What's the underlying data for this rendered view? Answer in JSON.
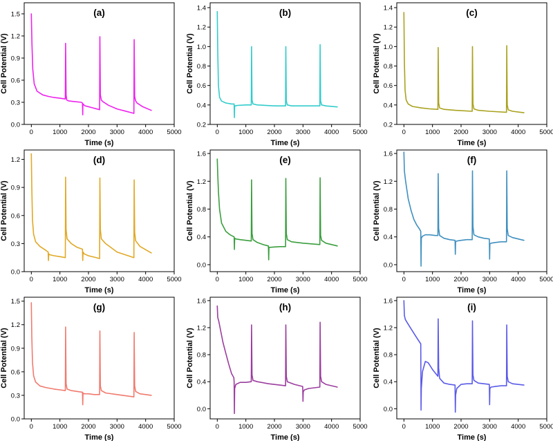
{
  "chart_data": [
    {
      "id": "a",
      "type": "line",
      "title": "(a)",
      "xlabel": "Time (s)",
      "ylabel": "Cell Potential (V)",
      "xlim": [
        -250,
        5000
      ],
      "ylim": [
        0,
        1.65
      ],
      "xticks": [
        0,
        1000,
        2000,
        3000,
        4000,
        5000
      ],
      "xtick_labels": [
        "0",
        "1000",
        "2000",
        "3000",
        "4000",
        "5000"
      ],
      "yticks": [
        0,
        0.3,
        0.6,
        0.9,
        1.2,
        1.5
      ],
      "ytick_labels": [
        "0.0",
        "0.3",
        "0.6",
        "0.9",
        "1.2",
        "1.5"
      ],
      "color": "#ee22ee",
      "x": [
        0,
        20,
        50,
        100,
        200,
        400,
        600,
        800,
        1000,
        1190,
        1200,
        1215,
        1240,
        1300,
        1500,
        1750,
        1790,
        1800,
        1805,
        1830,
        1850,
        1900,
        2100,
        2390,
        2400,
        2415,
        2450,
        2500,
        2700,
        3000,
        3300,
        3590,
        3600,
        3615,
        3650,
        3700,
        3900,
        4200
      ],
      "y": [
        1.5,
        1.1,
        0.75,
        0.55,
        0.45,
        0.4,
        0.38,
        0.365,
        0.355,
        0.345,
        1.1,
        0.4,
        0.33,
        0.32,
        0.31,
        0.3,
        0.29,
        0.13,
        0.28,
        0.27,
        0.26,
        0.25,
        0.23,
        0.2,
        1.19,
        0.4,
        0.33,
        0.31,
        0.26,
        0.21,
        0.18,
        0.15,
        1.15,
        0.38,
        0.32,
        0.29,
        0.24,
        0.19
      ]
    },
    {
      "id": "b",
      "type": "line",
      "title": "(b)",
      "xlabel": "Time (s)",
      "ylabel": "Cell Potential (V)",
      "xlim": [
        -250,
        5000
      ],
      "ylim": [
        0.2,
        1.45
      ],
      "xticks": [
        0,
        1000,
        2000,
        3000,
        4000,
        5000
      ],
      "xtick_labels": [
        "0",
        "1000",
        "2000",
        "3000",
        "4000",
        "5000"
      ],
      "yticks": [
        0.2,
        0.4,
        0.6,
        0.8,
        1.0,
        1.2,
        1.4
      ],
      "ytick_labels": [
        "0.2",
        "0.4",
        "0.6",
        "0.8",
        "1.0",
        "1.2",
        "1.4"
      ],
      "color": "#33cccc",
      "x": [
        0,
        15,
        40,
        80,
        150,
        300,
        500,
        590,
        600,
        610,
        640,
        700,
        1000,
        1190,
        1200,
        1215,
        1250,
        1400,
        2000,
        2390,
        2400,
        2415,
        2450,
        2600,
        3000,
        3590,
        3600,
        3615,
        3650,
        3800,
        4200
      ],
      "y": [
        1.36,
        0.95,
        0.6,
        0.48,
        0.44,
        0.42,
        0.41,
        0.41,
        0.27,
        0.39,
        0.39,
        0.395,
        0.4,
        0.4,
        1.0,
        0.45,
        0.41,
        0.4,
        0.39,
        0.39,
        1.0,
        0.44,
        0.4,
        0.39,
        0.39,
        0.39,
        1.02,
        0.44,
        0.4,
        0.39,
        0.38
      ]
    },
    {
      "id": "c",
      "type": "line",
      "title": "(c)",
      "xlabel": "Time (s)",
      "ylabel": "Cell Potential (V)",
      "xlim": [
        -250,
        5000
      ],
      "ylim": [
        0.2,
        1.45
      ],
      "xticks": [
        0,
        1000,
        2000,
        3000,
        4000,
        5000
      ],
      "xtick_labels": [
        "0",
        "1000",
        "2000",
        "3000",
        "4000",
        "5000"
      ],
      "yticks": [
        0.2,
        0.4,
        0.6,
        0.8,
        1.0,
        1.2,
        1.4
      ],
      "ytick_labels": [
        "0.2",
        "0.4",
        "0.6",
        "0.8",
        "1.0",
        "1.2",
        "1.4"
      ],
      "color": "#a9a21e",
      "x": [
        0,
        15,
        40,
        80,
        150,
        300,
        600,
        900,
        1190,
        1200,
        1215,
        1250,
        1400,
        1800,
        2390,
        2400,
        2415,
        2450,
        2600,
        3000,
        3590,
        3600,
        3615,
        3650,
        3800,
        4200
      ],
      "y": [
        1.35,
        0.85,
        0.55,
        0.45,
        0.41,
        0.385,
        0.37,
        0.36,
        0.355,
        0.99,
        0.42,
        0.37,
        0.355,
        0.345,
        0.335,
        1.0,
        0.41,
        0.36,
        0.345,
        0.335,
        0.325,
        1.01,
        0.4,
        0.35,
        0.335,
        0.32
      ]
    },
    {
      "id": "d",
      "type": "line",
      "title": "(d)",
      "xlabel": "Time (s)",
      "ylabel": "Cell Potential (V)",
      "xlim": [
        -250,
        5000
      ],
      "ylim": [
        0,
        1.3
      ],
      "xticks": [
        0,
        1000,
        2000,
        3000,
        4000,
        5000
      ],
      "xtick_labels": [
        "0",
        "1000",
        "2000",
        "3000",
        "4000",
        "5000"
      ],
      "yticks": [
        0,
        0.3,
        0.6,
        0.9,
        1.2
      ],
      "ytick_labels": [
        "0.0",
        "0.3",
        "0.6",
        "0.9",
        "1.2"
      ],
      "color": "#e0a826",
      "x": [
        0,
        15,
        40,
        80,
        150,
        300,
        500,
        590,
        600,
        610,
        650,
        800,
        1000,
        1190,
        1200,
        1215,
        1250,
        1400,
        1600,
        1790,
        1800,
        1810,
        1850,
        2000,
        2200,
        2390,
        2400,
        2415,
        2450,
        2600,
        3000,
        3590,
        3600,
        3615,
        3650,
        3800,
        4200
      ],
      "y": [
        1.26,
        0.9,
        0.55,
        0.4,
        0.32,
        0.27,
        0.23,
        0.21,
        0.12,
        0.19,
        0.18,
        0.17,
        0.16,
        0.15,
        1.01,
        0.45,
        0.35,
        0.3,
        0.26,
        0.24,
        0.12,
        0.21,
        0.19,
        0.17,
        0.155,
        0.14,
        1.0,
        0.45,
        0.35,
        0.3,
        0.21,
        0.15,
        0.98,
        0.42,
        0.33,
        0.27,
        0.2
      ]
    },
    {
      "id": "e",
      "type": "line",
      "title": "(e)",
      "xlabel": "Time (s)",
      "ylabel": "Cell Potential (V)",
      "xlim": [
        -250,
        5000
      ],
      "ylim": [
        -0.1,
        1.65
      ],
      "xticks": [
        0,
        1000,
        2000,
        3000,
        4000,
        5000
      ],
      "xtick_labels": [
        "0",
        "1000",
        "2000",
        "3000",
        "4000",
        "5000"
      ],
      "yticks": [
        0,
        0.4,
        0.8,
        1.2,
        1.6
      ],
      "ytick_labels": [
        "0.0",
        "0.4",
        "0.8",
        "1.2",
        "1.6"
      ],
      "color": "#3a9e3e",
      "x": [
        0,
        15,
        40,
        80,
        150,
        300,
        450,
        590,
        600,
        610,
        650,
        800,
        1000,
        1190,
        1200,
        1215,
        1250,
        1400,
        1600,
        1790,
        1800,
        1810,
        1850,
        2000,
        2200,
        2390,
        2400,
        2415,
        2450,
        2600,
        3000,
        3590,
        3600,
        3615,
        3650,
        3800,
        4200
      ],
      "y": [
        1.52,
        1.3,
        1.05,
        0.8,
        0.6,
        0.48,
        0.43,
        0.4,
        0.22,
        0.38,
        0.37,
        0.36,
        0.35,
        0.34,
        1.22,
        0.45,
        0.36,
        0.32,
        0.29,
        0.27,
        0.07,
        0.25,
        0.25,
        0.255,
        0.26,
        0.26,
        1.24,
        0.45,
        0.36,
        0.33,
        0.31,
        0.29,
        1.25,
        0.42,
        0.35,
        0.31,
        0.27
      ]
    },
    {
      "id": "f",
      "type": "line",
      "title": "(f)",
      "xlabel": "Time (s)",
      "ylabel": "Cell Potential (V)",
      "xlim": [
        -250,
        5000
      ],
      "ylim": [
        -0.1,
        1.65
      ],
      "xticks": [
        0,
        1000,
        2000,
        3000,
        4000,
        5000
      ],
      "xtick_labels": [
        "0",
        "1000",
        "2000",
        "3000",
        "4000",
        "5000"
      ],
      "yticks": [
        0,
        0.4,
        0.8,
        1.2,
        1.6
      ],
      "ytick_labels": [
        "0.0",
        "0.4",
        "0.8",
        "1.2",
        "1.6"
      ],
      "color": "#3f8fbf",
      "x": [
        0,
        15,
        60,
        150,
        250,
        350,
        450,
        550,
        590,
        600,
        610,
        650,
        750,
        900,
        1100,
        1190,
        1200,
        1215,
        1250,
        1400,
        1600,
        1790,
        1800,
        1810,
        1850,
        2000,
        2200,
        2390,
        2400,
        2415,
        2450,
        2600,
        2800,
        2990,
        3000,
        3010,
        3050,
        3200,
        3400,
        3590,
        3600,
        3615,
        3650,
        3800,
        4200
      ],
      "y": [
        1.62,
        1.35,
        1.2,
        0.95,
        0.78,
        0.65,
        0.57,
        0.51,
        0.48,
        -0.02,
        0.38,
        0.41,
        0.43,
        0.43,
        0.42,
        0.42,
        1.31,
        0.52,
        0.42,
        0.38,
        0.36,
        0.35,
        0.15,
        0.33,
        0.34,
        0.35,
        0.36,
        0.36,
        1.35,
        0.55,
        0.43,
        0.4,
        0.38,
        0.37,
        0.08,
        0.3,
        0.31,
        0.32,
        0.33,
        0.33,
        1.35,
        0.52,
        0.42,
        0.39,
        0.35
      ]
    },
    {
      "id": "g",
      "type": "line",
      "title": "(g)",
      "xlabel": "Time (s)",
      "ylabel": "Cell Potential (V)",
      "xlim": [
        -250,
        5000
      ],
      "ylim": [
        0,
        1.55
      ],
      "xticks": [
        0,
        1000,
        2000,
        3000,
        4000,
        5000
      ],
      "xtick_labels": [
        "0",
        "1000",
        "2000",
        "3000",
        "4000",
        "5000"
      ],
      "yticks": [
        0,
        0.3,
        0.6,
        0.9,
        1.2,
        1.5
      ],
      "ytick_labels": [
        "0.0",
        "0.3",
        "0.6",
        "0.9",
        "1.2",
        "1.5"
      ],
      "color": "#f07a6e",
      "x": [
        0,
        15,
        40,
        80,
        150,
        300,
        500,
        800,
        1000,
        1190,
        1200,
        1215,
        1250,
        1400,
        1600,
        1790,
        1800,
        1810,
        1850,
        2000,
        2200,
        2390,
        2400,
        2415,
        2450,
        2600,
        3000,
        3590,
        3600,
        3615,
        3650,
        3800,
        4200
      ],
      "y": [
        1.48,
        1.05,
        0.72,
        0.55,
        0.47,
        0.42,
        0.4,
        0.38,
        0.37,
        0.36,
        1.17,
        0.45,
        0.38,
        0.36,
        0.35,
        0.34,
        0.18,
        0.33,
        0.32,
        0.32,
        0.31,
        0.31,
        1.12,
        0.42,
        0.36,
        0.33,
        0.31,
        0.28,
        1.1,
        0.42,
        0.35,
        0.32,
        0.3
      ]
    },
    {
      "id": "h",
      "type": "line",
      "title": "(h)",
      "xlabel": "Time (s)",
      "ylabel": "Cell Potential (V)",
      "xlim": [
        -250,
        5000
      ],
      "ylim": [
        -0.15,
        1.65
      ],
      "xticks": [
        0,
        1000,
        2000,
        3000,
        4000,
        5000
      ],
      "xtick_labels": [
        "0",
        "1000",
        "2000",
        "3000",
        "4000",
        "5000"
      ],
      "yticks": [
        0,
        0.4,
        0.8,
        1.2,
        1.6
      ],
      "ytick_labels": [
        "0.0",
        "0.4",
        "0.8",
        "1.2",
        "1.6"
      ],
      "color": "#9b3d9e",
      "x": [
        0,
        15,
        50,
        120,
        200,
        300,
        400,
        500,
        580,
        590,
        600,
        610,
        650,
        800,
        1000,
        1190,
        1200,
        1215,
        1250,
        1400,
        1800,
        2390,
        2400,
        2415,
        2450,
        2700,
        2990,
        3000,
        3010,
        3050,
        3200,
        3400,
        3590,
        3600,
        3615,
        3650,
        3800,
        4200
      ],
      "y": [
        1.52,
        1.35,
        1.3,
        1.15,
        0.98,
        0.82,
        0.66,
        0.52,
        0.46,
        0.4,
        -0.07,
        0.3,
        0.36,
        0.39,
        0.39,
        0.4,
        1.24,
        0.5,
        0.42,
        0.4,
        0.37,
        0.34,
        1.24,
        0.48,
        0.4,
        0.36,
        0.33,
        0.11,
        0.25,
        0.28,
        0.3,
        0.31,
        0.32,
        1.28,
        0.48,
        0.4,
        0.36,
        0.32
      ]
    },
    {
      "id": "i",
      "type": "line",
      "title": "(i)",
      "xlabel": "Time (s)",
      "ylabel": "Cell Potential (V)",
      "xlim": [
        -250,
        5000
      ],
      "ylim": [
        -0.15,
        1.65
      ],
      "xticks": [
        0,
        1000,
        2000,
        3000,
        4000,
        5000
      ],
      "xtick_labels": [
        "0",
        "1000",
        "2000",
        "3000",
        "4000",
        "5000"
      ],
      "yticks": [
        0,
        0.4,
        0.8,
        1.2,
        1.6
      ],
      "ytick_labels": [
        "0.0",
        "0.4",
        "0.8",
        "1.2",
        "1.6"
      ],
      "color": "#5a5ae8",
      "x": [
        0,
        15,
        50,
        150,
        300,
        450,
        590,
        600,
        610,
        650,
        750,
        850,
        1000,
        1190,
        1200,
        1215,
        1250,
        1400,
        1600,
        1790,
        1800,
        1810,
        1850,
        2000,
        2200,
        2390,
        2400,
        2415,
        2450,
        2600,
        2800,
        2990,
        3000,
        3010,
        3050,
        3200,
        3400,
        3590,
        3600,
        3615,
        3650,
        3800,
        4200
      ],
      "y": [
        1.6,
        1.38,
        1.32,
        1.25,
        1.15,
        1.05,
        0.96,
        -0.02,
        0.3,
        0.55,
        0.7,
        0.68,
        0.58,
        0.48,
        1.33,
        0.6,
        0.45,
        0.38,
        0.36,
        0.35,
        -0.05,
        0.2,
        0.3,
        0.36,
        0.37,
        0.37,
        1.3,
        0.5,
        0.42,
        0.38,
        0.37,
        0.36,
        0.06,
        0.3,
        0.32,
        0.33,
        0.34,
        0.34,
        1.24,
        0.48,
        0.4,
        0.37,
        0.35
      ]
    }
  ]
}
